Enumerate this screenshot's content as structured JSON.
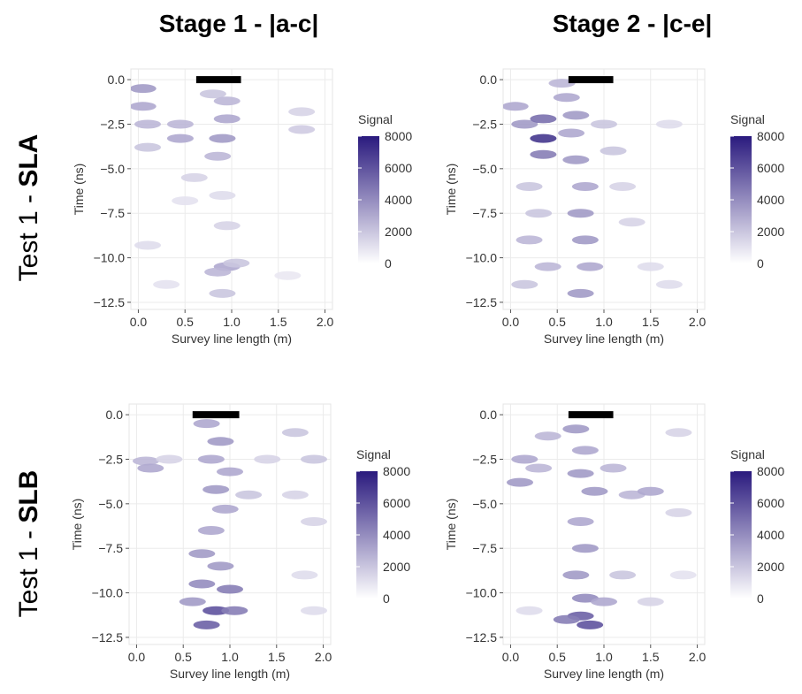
{
  "column_titles": [
    "Stage 1 - |a-c|",
    "Stage 2 - |c-e|"
  ],
  "row_labels": [
    {
      "prefix": "Test 1 - ",
      "bold": "SLA"
    },
    {
      "prefix": "Test 1 - ",
      "bold": "SLB"
    }
  ],
  "chart_data": [
    {
      "type": "heatmap",
      "x_label": "Survey line length (m)",
      "y_label": "Time (ns)",
      "xlim": [
        -0.08,
        2.08
      ],
      "ylim": [
        -12.9,
        0.6
      ],
      "xticks": [
        {
          "value": 0,
          "label": "0.0"
        },
        {
          "value": 0.5,
          "label": "0.5"
        },
        {
          "value": 1,
          "label": "1.0"
        },
        {
          "value": 1.5,
          "label": "1.5"
        },
        {
          "value": 2,
          "label": "2.0"
        }
      ],
      "yticks": [
        {
          "value": 0,
          "label": "0.0"
        },
        {
          "value": -2.5,
          "label": "−2.5"
        },
        {
          "value": -5,
          "label": "−5.0"
        },
        {
          "value": -7.5,
          "label": "−7.5"
        },
        {
          "value": -10,
          "label": "−10.0"
        },
        {
          "value": -12.5,
          "label": "−12.5"
        }
      ],
      "grid": true,
      "bar_x": [
        0.62,
        1.1
      ],
      "colorbar_title": "Signal",
      "clim": [
        0,
        8000
      ],
      "colorbar_ticks": [
        0,
        2000,
        4000,
        6000,
        8000
      ],
      "colormap": [
        "#ffffff",
        "#2a1a7e"
      ],
      "points": {
        "x": [
          0.05,
          0.05,
          0.1,
          0.1,
          0.45,
          0.45,
          0.8,
          0.95,
          0.95,
          0.9,
          0.85,
          0.6,
          0.9,
          0.95,
          0.1,
          0.95,
          0.85,
          1.05,
          0.9,
          1.75,
          1.75,
          0.3,
          1.6,
          0.5
        ],
        "y": [
          -0.5,
          -1.5,
          -2.5,
          -3.8,
          -2.5,
          -3.3,
          -0.8,
          -1.2,
          -2.2,
          -3.3,
          -4.3,
          -5.5,
          -6.5,
          -8.2,
          -9.3,
          -10.5,
          -10.8,
          -10.3,
          -12,
          -1.8,
          -2.8,
          -11.5,
          -11,
          -6.8
        ],
        "signal": [
          3500,
          3000,
          2500,
          2000,
          2500,
          3000,
          2000,
          2500,
          3000,
          3500,
          2500,
          1500,
          1200,
          1500,
          1200,
          3000,
          2500,
          2000,
          2000,
          1500,
          1800,
          1000,
          800,
          1000
        ]
      }
    },
    {
      "type": "heatmap",
      "x_label": "Survey line length (m)",
      "y_label": "Time (ns)",
      "xlim": [
        -0.08,
        2.08
      ],
      "ylim": [
        -12.9,
        0.6
      ],
      "xticks": [
        {
          "value": 0,
          "label": "0.0"
        },
        {
          "value": 0.5,
          "label": "0.5"
        },
        {
          "value": 1,
          "label": "1.0"
        },
        {
          "value": 1.5,
          "label": "1.5"
        },
        {
          "value": 2,
          "label": "2.0"
        }
      ],
      "yticks": [
        {
          "value": 0,
          "label": "0.0"
        },
        {
          "value": -2.5,
          "label": "−2.5"
        },
        {
          "value": -5,
          "label": "−5.0"
        },
        {
          "value": -7.5,
          "label": "−7.5"
        },
        {
          "value": -10,
          "label": "−10.0"
        },
        {
          "value": -12.5,
          "label": "−12.5"
        }
      ],
      "grid": true,
      "bar_x": [
        0.62,
        1.1
      ],
      "colorbar_title": "Signal",
      "clim": [
        0,
        8000
      ],
      "colorbar_ticks": [
        0,
        2000,
        4000,
        6000,
        8000
      ],
      "colormap": [
        "#ffffff",
        "#2a1a7e"
      ],
      "points": {
        "x": [
          0.05,
          0.15,
          0.35,
          0.35,
          0.35,
          0.6,
          0.7,
          0.65,
          0.7,
          0.8,
          0.75,
          0.8,
          0.85,
          0.75,
          0.2,
          0.3,
          0.2,
          0.4,
          0.15,
          1.0,
          1.1,
          1.2,
          1.3,
          1.5,
          1.7,
          1.7,
          0.55
        ],
        "y": [
          -1.5,
          -2.5,
          -3.3,
          -2.2,
          -4.2,
          -1,
          -2,
          -3,
          -4.5,
          -6,
          -7.5,
          -9,
          -10.5,
          -12,
          -6,
          -7.5,
          -9,
          -10.5,
          -11.5,
          -2.5,
          -4,
          -6,
          -8,
          -10.5,
          -11.5,
          -2.5,
          -0.2
        ],
        "signal": [
          3000,
          3500,
          7000,
          5000,
          4500,
          3000,
          3500,
          3000,
          3500,
          3000,
          3500,
          3500,
          3000,
          3500,
          2000,
          2000,
          2500,
          2500,
          2000,
          2000,
          2000,
          1500,
          1500,
          1200,
          1200,
          1200,
          2500
        ]
      }
    },
    {
      "type": "heatmap",
      "x_label": "Survey line length (m)",
      "y_label": "Time (ns)",
      "xlim": [
        -0.08,
        2.08
      ],
      "ylim": [
        -12.9,
        0.6
      ],
      "xticks": [
        {
          "value": 0,
          "label": "0.0"
        },
        {
          "value": 0.5,
          "label": "0.5"
        },
        {
          "value": 1,
          "label": "1.0"
        },
        {
          "value": 1.5,
          "label": "1.5"
        },
        {
          "value": 2,
          "label": "2.0"
        }
      ],
      "yticks": [
        {
          "value": 0,
          "label": "0.0"
        },
        {
          "value": -2.5,
          "label": "−2.5"
        },
        {
          "value": -5,
          "label": "−5.0"
        },
        {
          "value": -7.5,
          "label": "−7.5"
        },
        {
          "value": -10,
          "label": "−10.0"
        },
        {
          "value": -12.5,
          "label": "−12.5"
        }
      ],
      "grid": true,
      "bar_x": [
        0.6,
        1.1
      ],
      "colorbar_title": "Signal",
      "clim": [
        0,
        8000
      ],
      "colorbar_ticks": [
        0,
        2000,
        4000,
        6000,
        8000
      ],
      "colormap": [
        "#ffffff",
        "#2a1a7e"
      ],
      "points": {
        "x": [
          0.1,
          0.15,
          0.35,
          0.75,
          0.9,
          0.8,
          1.0,
          0.85,
          0.95,
          1.2,
          0.8,
          0.7,
          0.9,
          0.7,
          1.0,
          0.85,
          0.75,
          1.05,
          0.6,
          1.7,
          1.9,
          1.7,
          1.9,
          1.8,
          1.9,
          1.4
        ],
        "y": [
          -2.6,
          -3,
          -2.5,
          -0.5,
          -1.5,
          -2.5,
          -3.2,
          -4.2,
          -5.3,
          -4.5,
          -6.5,
          -7.8,
          -8.5,
          -9.5,
          -9.8,
          -11,
          -11.8,
          -11,
          -10.5,
          -1,
          -2.5,
          -4.5,
          -6,
          -9,
          -11,
          -2.5
        ],
        "signal": [
          2500,
          3000,
          1500,
          3000,
          3500,
          3000,
          3000,
          3500,
          3000,
          2000,
          3000,
          3500,
          3500,
          4000,
          4500,
          6000,
          5500,
          4500,
          3500,
          2000,
          2000,
          1500,
          1500,
          1200,
          1200,
          1500
        ]
      }
    },
    {
      "type": "heatmap",
      "x_label": "Survey line length (m)",
      "y_label": "Time (ns)",
      "xlim": [
        -0.08,
        2.08
      ],
      "ylim": [
        -12.9,
        0.6
      ],
      "xticks": [
        {
          "value": 0,
          "label": "0.0"
        },
        {
          "value": 0.5,
          "label": "0.5"
        },
        {
          "value": 1,
          "label": "1.0"
        },
        {
          "value": 1.5,
          "label": "1.5"
        },
        {
          "value": 2,
          "label": "2.0"
        }
      ],
      "yticks": [
        {
          "value": 0,
          "label": "0.0"
        },
        {
          "value": -2.5,
          "label": "−2.5"
        },
        {
          "value": -5,
          "label": "−5.0"
        },
        {
          "value": -7.5,
          "label": "−7.5"
        },
        {
          "value": -10,
          "label": "−10.0"
        },
        {
          "value": -12.5,
          "label": "−12.5"
        }
      ],
      "grid": true,
      "bar_x": [
        0.62,
        1.1
      ],
      "colorbar_title": "Signal",
      "clim": [
        0,
        8000
      ],
      "colorbar_ticks": [
        0,
        2000,
        4000,
        6000,
        8000
      ],
      "colormap": [
        "#ffffff",
        "#2a1a7e"
      ],
      "points": {
        "x": [
          0.15,
          0.1,
          0.3,
          0.4,
          0.7,
          0.8,
          0.75,
          0.9,
          1.1,
          1.3,
          1.5,
          0.75,
          0.8,
          0.7,
          0.8,
          0.75,
          0.85,
          0.6,
          1.0,
          1.2,
          1.5,
          1.8,
          1.8,
          1.85,
          0.2
        ],
        "y": [
          -2.5,
          -3.8,
          -3,
          -1.2,
          -0.8,
          -2,
          -3.3,
          -4.3,
          -3,
          -4.5,
          -4.3,
          -6,
          -7.5,
          -9,
          -10.3,
          -11.3,
          -11.8,
          -11.5,
          -10.5,
          -9,
          -10.5,
          -1,
          -5.5,
          -9,
          -11
        ],
        "signal": [
          3000,
          3500,
          2500,
          2500,
          3500,
          3000,
          3500,
          3500,
          2500,
          2500,
          3000,
          3000,
          3500,
          3500,
          4000,
          5500,
          6000,
          4500,
          3000,
          2000,
          1500,
          1500,
          1500,
          1000,
          1200
        ]
      }
    }
  ]
}
